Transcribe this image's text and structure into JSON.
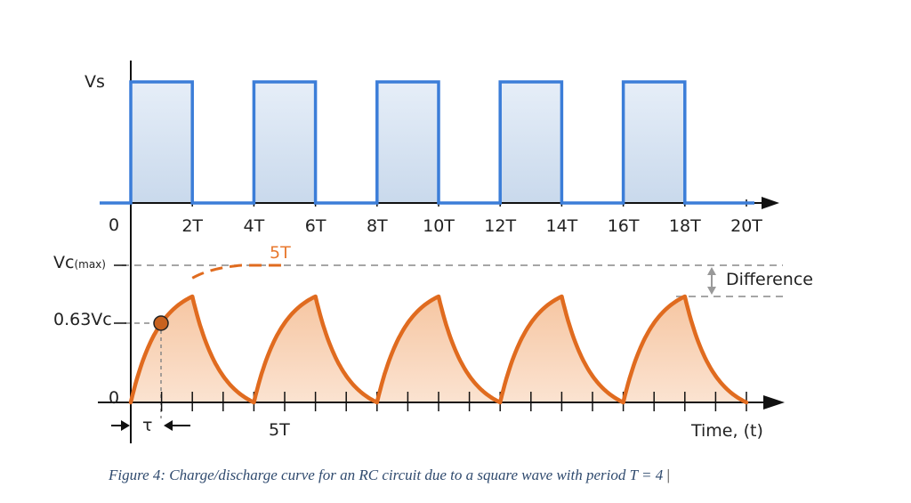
{
  "colors": {
    "square_wave": "#3b7dd8",
    "square_fill": "#d6e4f2",
    "capacitor_curve": "#e06b1f",
    "capacitor_fill": "#f8d2b6",
    "axis": "#111111",
    "dashed": "#888888",
    "caption": "#2f4a6e"
  },
  "top_graph": {
    "y_label": "Vs",
    "origin_label": "0",
    "x_ticks": [
      "2T",
      "4T",
      "6T",
      "8T",
      "10T",
      "12T",
      "14T",
      "16T",
      "18T",
      "20T"
    ]
  },
  "bottom_graph": {
    "vc_max_label": "Vc",
    "vc_max_subscript": "(max)",
    "level_label": "0.63Vc",
    "origin_label": "0",
    "five_t_label": "5T",
    "five_t_axis_label": "5T",
    "tau_label": "τ",
    "difference_label": "Difference",
    "x_axis_label": "Time, (t)"
  },
  "caption": "Figure 4: Charge/discharge curve for an RC circuit due to a square wave with period T = 4"
}
